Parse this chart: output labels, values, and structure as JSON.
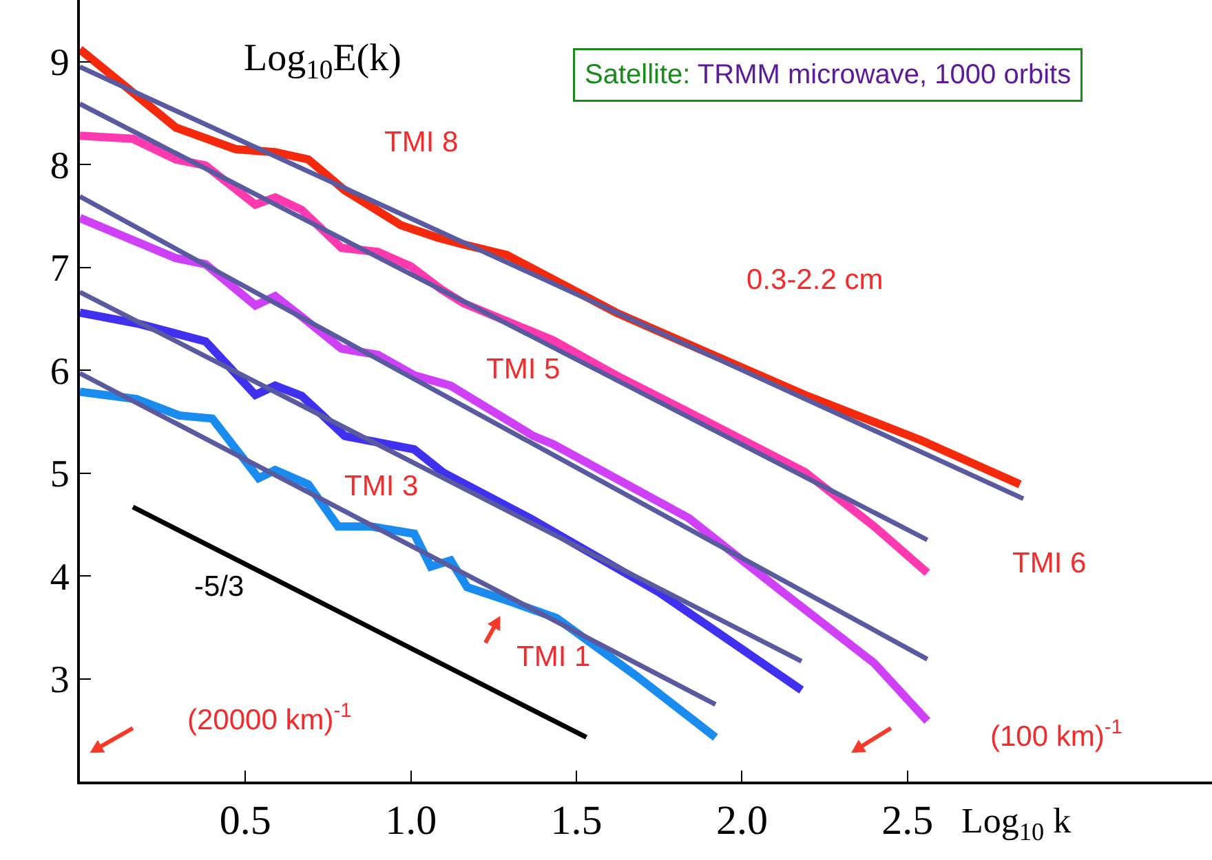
{
  "chart_data": {
    "type": "line",
    "title": "Satellite:",
    "subtitle": "TRMM microwave, 1000 orbits",
    "xlabel": "Log$_{10}$ k",
    "ylabel": "Log$_{10}$E(k)",
    "xlim": [
      0,
      3.42
    ],
    "ylim": [
      2.0,
      9.6
    ],
    "xticks": [
      0.5,
      {
        "value": 1,
        "label": "1.0"
      },
      1.5,
      {
        "value": 2,
        "label": "2.0"
      },
      2.5
    ],
    "yticks": [
      3,
      4,
      5,
      6,
      7,
      8,
      9
    ],
    "annotations": [
      "TMI 8",
      "0.3-2.2 cm",
      "TMI 5",
      "TMI 3",
      "TMI 6",
      "-5/3",
      "TMI 1",
      "(20000 km)$^{-1}$",
      "(100 km)$^{-1}$"
    ],
    "series": [
      {
        "color": "#f52a0c",
        "x": [
          0,
          0.29,
          0.47,
          0.59,
          0.69,
          0.8,
          0.97,
          1.08,
          1.15,
          1.29,
          1.62,
          1.74,
          2.19,
          2.54,
          2.84
        ],
        "values": [
          9.12,
          8.36,
          8.15,
          8.12,
          8.05,
          7.75,
          7.41,
          7.29,
          7.23,
          7.12,
          6.56,
          6.39,
          5.76,
          5.32,
          4.89
        ]
      },
      {
        "color": "#ff3ab0",
        "x": [
          0,
          0.16,
          0.29,
          0.38,
          0.53,
          0.59,
          0.67,
          0.79,
          0.9,
          1.0,
          1.09,
          1.16,
          1.43,
          1.62,
          1.84,
          2.19,
          2.4,
          2.56
        ],
        "values": [
          8.28,
          8.25,
          8.05,
          7.99,
          7.61,
          7.68,
          7.56,
          7.19,
          7.15,
          7.01,
          6.79,
          6.65,
          6.29,
          5.95,
          5.59,
          5.01,
          4.48,
          4.03
        ]
      },
      {
        "color": "#d040f8",
        "x": [
          0,
          0.29,
          0.38,
          0.53,
          0.59,
          0.67,
          0.79,
          0.9,
          1.01,
          1.12,
          1.37,
          1.43,
          1.84,
          2.12,
          2.4,
          2.56
        ],
        "values": [
          7.48,
          7.09,
          7.03,
          6.63,
          6.72,
          6.52,
          6.21,
          6.15,
          5.95,
          5.85,
          5.36,
          5.28,
          4.56,
          3.85,
          3.15,
          2.59
        ]
      },
      {
        "color": "#4030f0",
        "x": [
          0,
          0.18,
          0.38,
          0.53,
          0.59,
          0.67,
          0.8,
          1.01,
          1.1,
          1.36,
          1.75,
          2.18
        ],
        "values": [
          6.56,
          6.45,
          6.28,
          5.76,
          5.85,
          5.75,
          5.36,
          5.23,
          5.0,
          4.56,
          3.84,
          2.89
        ]
      },
      {
        "color": "#1a8cf0",
        "x": [
          0,
          0.17,
          0.3,
          0.4,
          0.54,
          0.59,
          0.69,
          0.78,
          0.88,
          1.01,
          1.06,
          1.12,
          1.17,
          1.3,
          1.44,
          1.68,
          1.92
        ],
        "values": [
          5.79,
          5.72,
          5.56,
          5.53,
          4.95,
          5.03,
          4.89,
          4.48,
          4.48,
          4.41,
          4.09,
          4.15,
          3.89,
          3.75,
          3.59,
          3.03,
          2.43
        ]
      },
      {
        "color": "#5a5aa0",
        "x": [
          0,
          2.85
        ],
        "values": [
          8.95,
          4.75
        ]
      },
      {
        "color": "#5a5aa0",
        "x": [
          0,
          2.56
        ],
        "values": [
          8.59,
          4.35
        ]
      },
      {
        "color": "#5a5aa0",
        "x": [
          0,
          2.56
        ],
        "values": [
          7.69,
          3.19
        ]
      },
      {
        "color": "#5a5aa0",
        "x": [
          0,
          2.18
        ],
        "values": [
          6.76,
          3.17
        ]
      },
      {
        "color": "#5a5aa0",
        "x": [
          0,
          1.92
        ],
        "values": [
          5.97,
          2.75
        ]
      },
      {
        "color": "#000000",
        "x": [
          0.16,
          1.53
        ],
        "values": [
          4.67,
          2.43
        ]
      }
    ]
  }
}
